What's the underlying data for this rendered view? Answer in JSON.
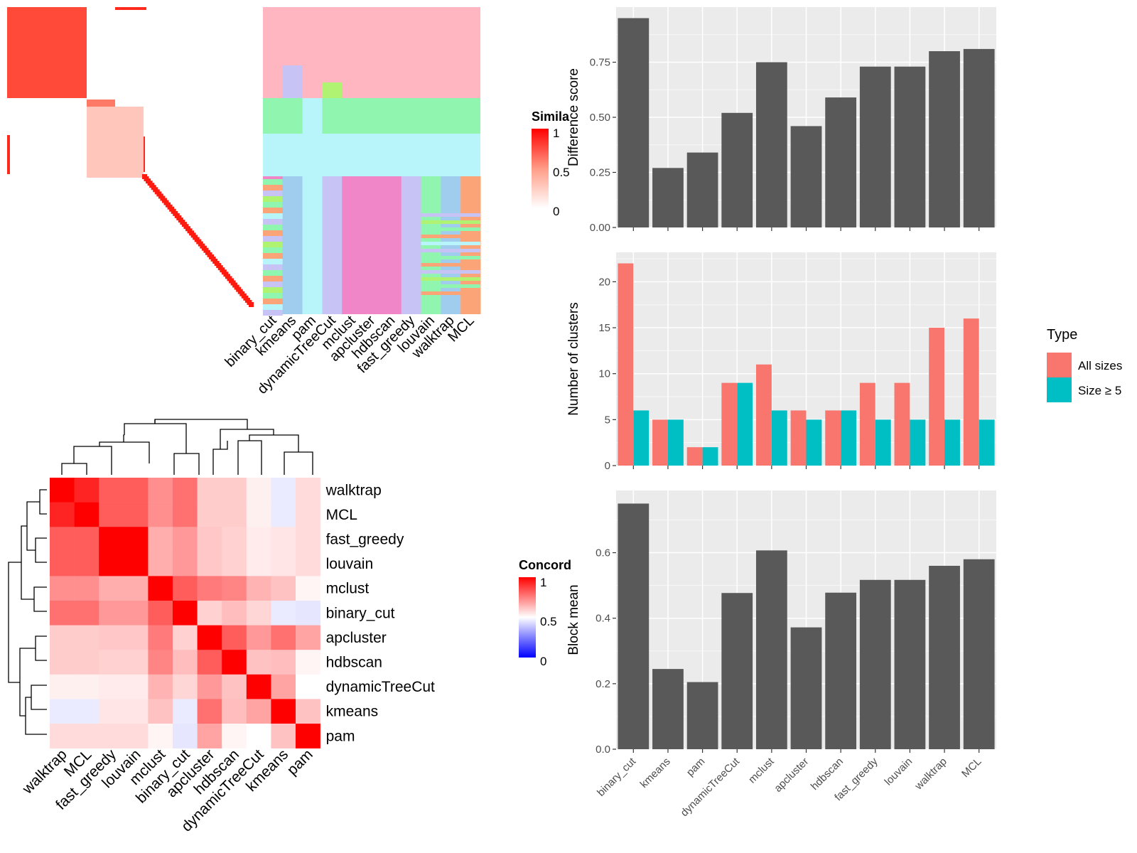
{
  "similarity_legend": {
    "title": "Simila",
    "ticks": [
      "1",
      "0.5",
      "0"
    ]
  },
  "top_heatmap": {
    "methods": [
      "binary_cut",
      "kmeans",
      "pam",
      "dynamicTreeCut",
      "mclust",
      "apcluster",
      "hdbscan",
      "fast_greedy",
      "louvain",
      "walktrap",
      "MCL"
    ],
    "palette": [
      "#FFB6C1",
      "#90F5AE",
      "#B7F5FB",
      "#F085C8",
      "#A0CCEE",
      "#C8C3F5",
      "#FAA477",
      "#B0F373"
    ]
  },
  "concordance_heatmap": {
    "legend_title": "Concord",
    "legend_ticks": [
      "1",
      "0.5",
      "0"
    ],
    "order": [
      "walktrap",
      "MCL",
      "fast_greedy",
      "louvain",
      "mclust",
      "binary_cut",
      "apcluster",
      "hdbscan",
      "dynamicTreeCut",
      "kmeans",
      "pam"
    ],
    "matrix": [
      [
        1.0,
        0.93,
        0.82,
        0.82,
        0.72,
        0.78,
        0.6,
        0.6,
        0.53,
        0.46,
        0.57
      ],
      [
        0.93,
        1.0,
        0.82,
        0.82,
        0.72,
        0.78,
        0.6,
        0.6,
        0.53,
        0.46,
        0.57
      ],
      [
        0.82,
        0.82,
        1.0,
        1.0,
        0.66,
        0.7,
        0.61,
        0.59,
        0.54,
        0.55,
        0.57
      ],
      [
        0.82,
        0.82,
        1.0,
        1.0,
        0.66,
        0.7,
        0.61,
        0.59,
        0.54,
        0.55,
        0.57
      ],
      [
        0.72,
        0.72,
        0.66,
        0.66,
        1.0,
        0.82,
        0.76,
        0.74,
        0.65,
        0.62,
        0.52
      ],
      [
        0.78,
        0.78,
        0.7,
        0.7,
        0.82,
        1.0,
        0.59,
        0.63,
        0.58,
        0.46,
        0.45
      ],
      [
        0.6,
        0.6,
        0.61,
        0.61,
        0.76,
        0.59,
        1.0,
        0.82,
        0.7,
        0.78,
        0.68
      ],
      [
        0.6,
        0.6,
        0.59,
        0.59,
        0.74,
        0.63,
        0.82,
        1.0,
        0.62,
        0.63,
        0.52
      ],
      [
        0.53,
        0.53,
        0.54,
        0.54,
        0.65,
        0.58,
        0.7,
        0.62,
        1.0,
        0.68,
        0.5
      ],
      [
        0.46,
        0.46,
        0.55,
        0.55,
        0.62,
        0.46,
        0.78,
        0.63,
        0.68,
        1.0,
        0.62
      ],
      [
        0.57,
        0.57,
        0.57,
        0.57,
        0.52,
        0.45,
        0.68,
        0.52,
        0.5,
        0.62,
        1.0
      ]
    ]
  },
  "chart_data": [
    {
      "type": "bar",
      "ylabel": "Difference score",
      "categories": [
        "binary_cut",
        "kmeans",
        "pam",
        "dynamicTreeCut",
        "mclust",
        "apcluster",
        "hdbscan",
        "fast_greedy",
        "louvain",
        "walktrap",
        "MCL"
      ],
      "values": [
        0.95,
        0.27,
        0.34,
        0.52,
        0.75,
        0.46,
        0.59,
        0.73,
        0.73,
        0.8,
        0.81
      ],
      "ylim": [
        0,
        1.0
      ],
      "yticks": [
        "0.00",
        "0.25",
        "0.50",
        "0.75"
      ],
      "color": "#595959"
    },
    {
      "type": "bar",
      "ylabel": "Number of clusters",
      "categories": [
        "binary_cut",
        "kmeans",
        "pam",
        "dynamicTreeCut",
        "mclust",
        "apcluster",
        "hdbscan",
        "fast_greedy",
        "louvain",
        "walktrap",
        "MCL"
      ],
      "series": [
        {
          "name": "All sizes",
          "values": [
            22,
            5,
            2,
            9,
            11,
            6,
            6,
            9,
            9,
            15,
            16
          ],
          "color": "#F8766D"
        },
        {
          "name": "Size ≥ 5",
          "values": [
            6,
            5,
            2,
            9,
            6,
            5,
            6,
            5,
            5,
            5,
            5
          ],
          "color": "#00BFC4"
        }
      ],
      "legend_title": "Type",
      "ylim": [
        0,
        23.2
      ],
      "yticks": [
        "0",
        "5",
        "10",
        "15",
        "20"
      ]
    },
    {
      "type": "bar",
      "ylabel": "Block mean",
      "categories": [
        "binary_cut",
        "kmeans",
        "pam",
        "dynamicTreeCut",
        "mclust",
        "apcluster",
        "hdbscan",
        "fast_greedy",
        "louvain",
        "walktrap",
        "MCL"
      ],
      "values": [
        0.75,
        0.245,
        0.205,
        0.477,
        0.607,
        0.372,
        0.478,
        0.517,
        0.517,
        0.56,
        0.58
      ],
      "ylim": [
        0,
        0.79
      ],
      "yticks": [
        "0.0",
        "0.2",
        "0.4",
        "0.6"
      ],
      "color": "#595959"
    }
  ]
}
